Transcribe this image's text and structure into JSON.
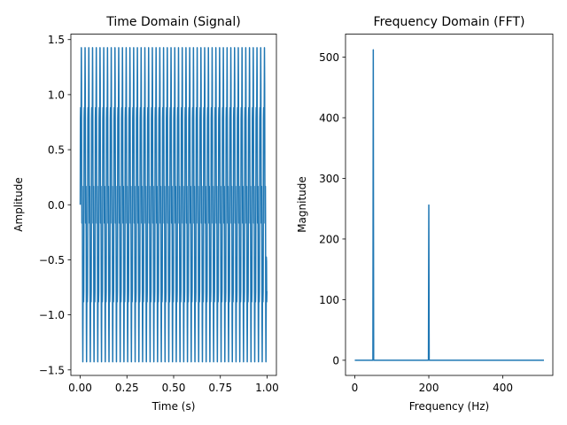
{
  "colors": {
    "series": "#1f77b4",
    "axis": "#000000",
    "background": "#ffffff"
  },
  "chart_data": [
    {
      "type": "line",
      "title": "Time Domain (Signal)",
      "xlabel": "Time (s)",
      "ylabel": "Amplitude",
      "xlim": [
        -0.05,
        1.05
      ],
      "ylim": [
        -1.55,
        1.55
      ],
      "xticks": [
        0.0,
        0.25,
        0.5,
        0.75,
        1.0
      ],
      "xtick_labels": [
        "0.00",
        "0.25",
        "0.50",
        "0.75",
        "1.00"
      ],
      "yticks": [
        -1.5,
        -1.0,
        -0.5,
        0.0,
        0.5,
        1.0,
        1.5
      ],
      "ytick_labels": [
        "−1.5",
        "−1.0",
        "−0.5",
        "0.0",
        "0.5",
        "1.0",
        "1.5"
      ],
      "grid": false,
      "series": [
        {
          "sampling": {
            "t_start": 0,
            "t_end": 0.999,
            "samples": 1000
          },
          "components": [
            {
              "amplitude": 1.0,
              "frequency_hz": 50
            },
            {
              "amplitude": 0.5,
              "frequency_hz": 200
            }
          ],
          "y_range": [
            -1.42,
            1.42
          ]
        }
      ]
    },
    {
      "type": "line",
      "title": "Frequency Domain (FFT)",
      "xlabel": "Frequency (Hz)",
      "ylabel": "Magnitude",
      "xlim": [
        -25,
        535
      ],
      "ylim": [
        -25,
        538
      ],
      "xticks": [
        0,
        200,
        400
      ],
      "xtick_labels": [
        "0",
        "200",
        "400"
      ],
      "yticks": [
        0,
        100,
        200,
        300,
        400,
        500
      ],
      "ytick_labels": [
        "0",
        "100",
        "200",
        "300",
        "400",
        "500"
      ],
      "grid": false,
      "series": [
        {
          "x": [
            0,
            49,
            50,
            51,
            199,
            200,
            201,
            511
          ],
          "y": [
            0,
            0,
            512,
            0,
            0,
            256,
            0,
            0
          ]
        }
      ]
    }
  ]
}
